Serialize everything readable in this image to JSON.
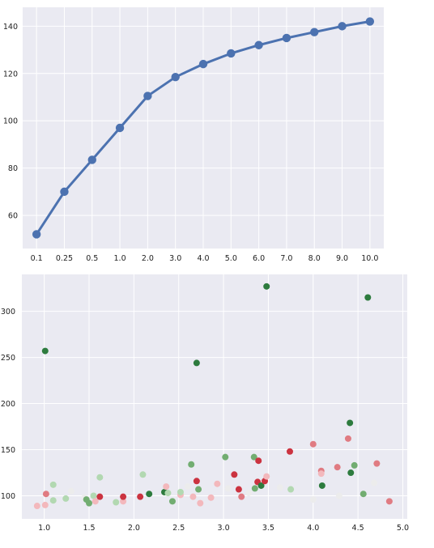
{
  "chart_data": [
    {
      "type": "line",
      "style": "pointplot",
      "categories": [
        "0.1",
        "0.25",
        "0.5",
        "1.0",
        "2.0",
        "3.0",
        "4.0",
        "5.0",
        "6.0",
        "7.0",
        "8.0",
        "9.0",
        "10.0"
      ],
      "series": [
        {
          "values": [
            52,
            70,
            83.5,
            97,
            110.5,
            118.5,
            124,
            128.5,
            132,
            135,
            137.5,
            140,
            142
          ]
        }
      ],
      "yticks": [
        "60",
        "80",
        "100",
        "120",
        "140"
      ],
      "ylim": [
        46,
        148
      ],
      "grid": true,
      "colors": {
        "line": "#4c72b0",
        "background": "#eaeaf2",
        "grid": "#ffffff"
      }
    },
    {
      "type": "scatter",
      "xlim": [
        0.75,
        5.05
      ],
      "ylim": [
        75,
        340
      ],
      "xticks": [
        "1.0",
        "1.5",
        "2.0",
        "2.5",
        "3.0",
        "3.5",
        "4.0",
        "4.5",
        "5.0"
      ],
      "yticks": [
        "100",
        "150",
        "200",
        "250",
        "300"
      ],
      "grid": true,
      "colors": {
        "background": "#eaeaf2",
        "grid": "#ffffff",
        "strong_red": "#cb3340",
        "mid_red": "#e07b82",
        "light_red": "#f3b8bc",
        "pale": "#ececec",
        "light_green": "#b2d8b1",
        "mid_green": "#72ad71",
        "strong_green": "#2d7b3e"
      },
      "points": [
        {
          "x": 0.92,
          "y": 89,
          "c": "light_red"
        },
        {
          "x": 1.02,
          "y": 102,
          "c": "mid_red"
        },
        {
          "x": 1.01,
          "y": 90,
          "c": "light_red"
        },
        {
          "x": 1.01,
          "y": 257,
          "c": "strong_green"
        },
        {
          "x": 1.1,
          "y": 112,
          "c": "light_green"
        },
        {
          "x": 1.1,
          "y": 95,
          "c": "light_green"
        },
        {
          "x": 1.24,
          "y": 97,
          "c": "light_green"
        },
        {
          "x": 1.3,
          "y": 105,
          "c": "pale"
        },
        {
          "x": 1.45,
          "y": 98,
          "c": "pale"
        },
        {
          "x": 1.47,
          "y": 96,
          "c": "mid_green"
        },
        {
          "x": 1.5,
          "y": 92,
          "c": "mid_green"
        },
        {
          "x": 1.55,
          "y": 100,
          "c": "light_green"
        },
        {
          "x": 1.57,
          "y": 94,
          "c": "light_red"
        },
        {
          "x": 1.62,
          "y": 99,
          "c": "strong_red"
        },
        {
          "x": 1.62,
          "y": 120,
          "c": "light_green"
        },
        {
          "x": 1.8,
          "y": 93,
          "c": "light_green"
        },
        {
          "x": 1.88,
          "y": 94,
          "c": "light_red"
        },
        {
          "x": 1.88,
          "y": 99,
          "c": "strong_red"
        },
        {
          "x": 2.07,
          "y": 99,
          "c": "strong_red"
        },
        {
          "x": 2.1,
          "y": 123,
          "c": "light_green"
        },
        {
          "x": 2.17,
          "y": 102,
          "c": "strong_green"
        },
        {
          "x": 2.34,
          "y": 104,
          "c": "strong_green"
        },
        {
          "x": 2.36,
          "y": 110,
          "c": "light_red"
        },
        {
          "x": 2.38,
          "y": 103,
          "c": "light_green"
        },
        {
          "x": 2.43,
          "y": 94,
          "c": "mid_green"
        },
        {
          "x": 2.52,
          "y": 101,
          "c": "light_red"
        },
        {
          "x": 2.52,
          "y": 104,
          "c": "light_green"
        },
        {
          "x": 2.6,
          "y": 110,
          "c": "pale"
        },
        {
          "x": 2.64,
          "y": 134,
          "c": "mid_green"
        },
        {
          "x": 2.66,
          "y": 99,
          "c": "light_red"
        },
        {
          "x": 2.7,
          "y": 244,
          "c": "strong_green"
        },
        {
          "x": 2.7,
          "y": 116,
          "c": "strong_red"
        },
        {
          "x": 2.72,
          "y": 107,
          "c": "mid_green"
        },
        {
          "x": 2.74,
          "y": 92,
          "c": "light_red"
        },
        {
          "x": 2.86,
          "y": 98,
          "c": "light_red"
        },
        {
          "x": 2.93,
          "y": 113,
          "c": "light_red"
        },
        {
          "x": 3.02,
          "y": 142,
          "c": "mid_green"
        },
        {
          "x": 3.05,
          "y": 108,
          "c": "pale"
        },
        {
          "x": 3.12,
          "y": 123,
          "c": "strong_red"
        },
        {
          "x": 3.17,
          "y": 107,
          "c": "strong_red"
        },
        {
          "x": 3.2,
          "y": 99,
          "c": "mid_red"
        },
        {
          "x": 3.28,
          "y": 103,
          "c": "pale"
        },
        {
          "x": 3.34,
          "y": 142,
          "c": "mid_green"
        },
        {
          "x": 3.35,
          "y": 108,
          "c": "mid_green"
        },
        {
          "x": 3.38,
          "y": 115,
          "c": "strong_red"
        },
        {
          "x": 3.39,
          "y": 138,
          "c": "strong_red"
        },
        {
          "x": 3.42,
          "y": 111,
          "c": "strong_green"
        },
        {
          "x": 3.46,
          "y": 116,
          "c": "strong_red"
        },
        {
          "x": 3.48,
          "y": 327,
          "c": "strong_green"
        },
        {
          "x": 3.48,
          "y": 121,
          "c": "light_red"
        },
        {
          "x": 3.63,
          "y": 109,
          "c": "pale"
        },
        {
          "x": 3.74,
          "y": 148,
          "c": "strong_red"
        },
        {
          "x": 3.75,
          "y": 107,
          "c": "light_green"
        },
        {
          "x": 4.0,
          "y": 156,
          "c": "mid_red"
        },
        {
          "x": 4.0,
          "y": 96,
          "c": "pale"
        },
        {
          "x": 4.09,
          "y": 127,
          "c": "mid_red"
        },
        {
          "x": 4.09,
          "y": 124,
          "c": "light_red"
        },
        {
          "x": 4.1,
          "y": 111,
          "c": "strong_green"
        },
        {
          "x": 4.27,
          "y": 131,
          "c": "mid_red"
        },
        {
          "x": 4.29,
          "y": 100,
          "c": "pale"
        },
        {
          "x": 4.39,
          "y": 162,
          "c": "mid_red"
        },
        {
          "x": 4.41,
          "y": 179,
          "c": "strong_green"
        },
        {
          "x": 4.42,
          "y": 125,
          "c": "strong_green"
        },
        {
          "x": 4.46,
          "y": 133,
          "c": "mid_green"
        },
        {
          "x": 4.56,
          "y": 102,
          "c": "mid_green"
        },
        {
          "x": 4.61,
          "y": 315,
          "c": "strong_green"
        },
        {
          "x": 4.68,
          "y": 114,
          "c": "pale"
        },
        {
          "x": 4.71,
          "y": 135,
          "c": "mid_red"
        },
        {
          "x": 4.85,
          "y": 94,
          "c": "mid_red"
        }
      ]
    }
  ]
}
